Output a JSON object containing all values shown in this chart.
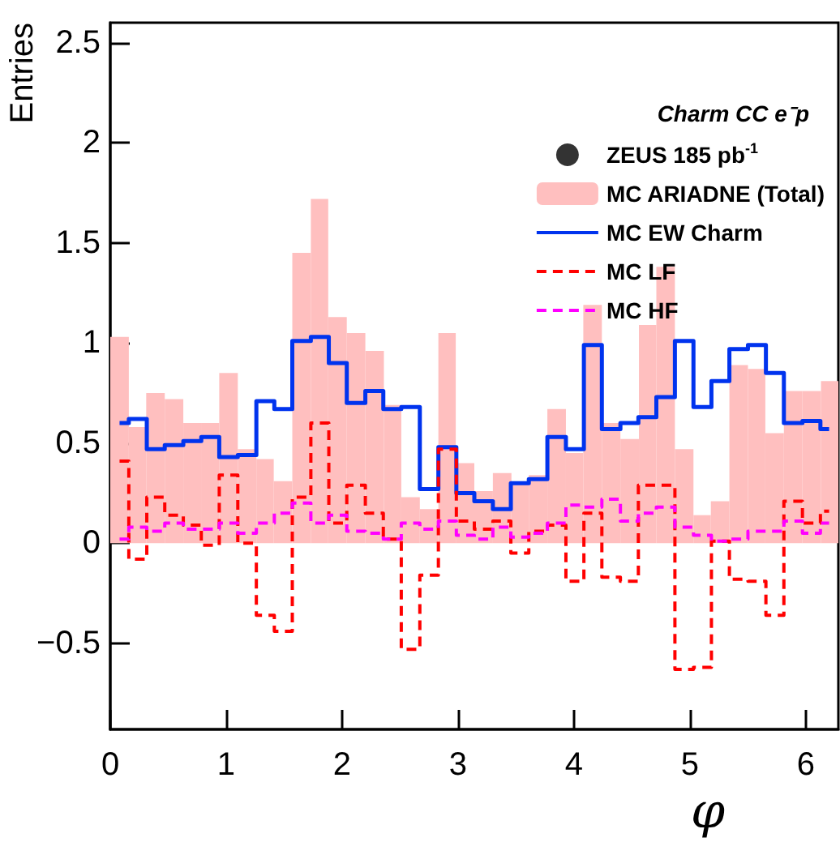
{
  "chart_data": {
    "type": "histogram",
    "xlabel": "φ",
    "ylabel": "Entries",
    "legend_title": "Charm CC e⁻p",
    "legend": "top right",
    "grid": false,
    "xlim": [
      0,
      6.28
    ],
    "xticks": [
      0,
      1,
      2,
      3,
      4,
      5,
      6
    ],
    "ylim": [
      -0.93,
      2.6
    ],
    "yticks": [
      -0.5,
      0,
      0.5,
      1,
      1.5,
      2,
      2.5
    ],
    "bins": [
      0,
      0.16,
      0.31,
      0.47,
      0.63,
      0.79,
      0.94,
      1.1,
      1.26,
      1.41,
      1.57,
      1.73,
      1.88,
      2.04,
      2.2,
      2.36,
      2.51,
      2.67,
      2.83,
      2.98,
      3.14,
      3.3,
      3.46,
      3.61,
      3.77,
      3.93,
      4.08,
      4.24,
      4.4,
      4.56,
      4.71,
      4.87,
      5.03,
      5.18,
      5.34,
      5.5,
      5.65,
      5.81,
      5.97,
      6.13,
      6.28
    ],
    "series": [
      {
        "name": "ZEUS 185 pb$^{-1}$",
        "type": "scatter",
        "marker": "circle",
        "color": "#000000",
        "values": [
          null,
          null,
          null,
          null,
          null,
          null,
          null,
          null,
          null,
          null,
          null,
          null,
          null,
          null,
          null,
          null,
          null,
          null,
          null,
          null,
          null,
          null,
          null,
          null,
          null,
          null,
          null,
          null,
          null,
          null,
          null,
          null,
          null,
          null,
          null,
          null,
          null,
          null,
          null,
          null
        ]
      },
      {
        "name": "MC ARIADNE (Total)",
        "color": "#ffbfbf",
        "values": [
          1.03,
          0.58,
          0.75,
          0.72,
          0.6,
          0.6,
          0.85,
          0.47,
          0.42,
          0.31,
          1.45,
          1.72,
          1.13,
          1.05,
          0.96,
          0.69,
          0.23,
          0.17,
          1.05,
          0.4,
          0.26,
          0.35,
          0.3,
          0.34,
          0.67,
          0.45,
          1.19,
          0.6,
          0.52,
          1.09,
          1.38,
          0.47,
          0.14,
          0.21,
          0.89,
          0.87,
          0.55,
          0.76,
          0.76,
          0.81
        ]
      },
      {
        "name": "MC EW Charm",
        "type": "step",
        "line_style": "solid",
        "color": "#0033ee",
        "x": [
          0.08,
          0.24,
          0.39,
          0.55,
          0.71,
          0.86,
          1.02,
          1.18,
          1.34,
          1.49,
          1.65,
          1.81,
          1.96,
          2.12,
          2.28,
          2.43,
          2.59,
          2.75,
          2.91,
          3.06,
          3.22,
          3.38,
          3.53,
          3.69,
          3.85,
          4.01,
          4.16,
          4.32,
          4.48,
          4.63,
          4.79,
          4.95,
          5.11,
          5.26,
          5.42,
          5.58,
          5.73,
          5.89,
          6.05,
          6.2
        ],
        "values": [
          0.6,
          0.62,
          0.47,
          0.49,
          0.51,
          0.53,
          0.43,
          0.44,
          0.71,
          0.67,
          1.01,
          1.03,
          0.9,
          0.7,
          0.76,
          0.67,
          0.68,
          0.27,
          0.48,
          0.25,
          0.21,
          0.17,
          0.3,
          0.32,
          0.53,
          0.47,
          0.99,
          0.57,
          0.6,
          0.63,
          0.73,
          1.01,
          0.68,
          0.81,
          0.97,
          0.99,
          0.85,
          0.6,
          0.61,
          0.57
        ]
      },
      {
        "name": "MC LF",
        "type": "step",
        "line_style": "dashed",
        "color": "#ff0000",
        "x": [
          0.08,
          0.24,
          0.39,
          0.55,
          0.71,
          0.86,
          1.02,
          1.18,
          1.34,
          1.49,
          1.65,
          1.81,
          1.96,
          2.12,
          2.28,
          2.43,
          2.59,
          2.75,
          2.91,
          3.06,
          3.22,
          3.38,
          3.53,
          3.69,
          3.85,
          4.01,
          4.16,
          4.32,
          4.48,
          4.63,
          4.79,
          4.95,
          5.11,
          5.26,
          5.42,
          5.58,
          5.73,
          5.89,
          6.05,
          6.2
        ],
        "values": [
          0.41,
          -0.08,
          0.23,
          0.14,
          0.09,
          -0.01,
          0.34,
          0.0,
          -0.36,
          -0.44,
          0.23,
          0.6,
          0.1,
          0.29,
          0.15,
          0.02,
          -0.53,
          -0.16,
          0.47,
          0.11,
          0.07,
          0.11,
          -0.05,
          0.06,
          0.09,
          -0.19,
          0.15,
          -0.17,
          -0.19,
          0.29,
          0.29,
          -0.63,
          -0.62,
          0.01,
          -0.18,
          -0.19,
          -0.36,
          0.21,
          0.1,
          0.16
        ]
      },
      {
        "name": "MC HF",
        "type": "step",
        "line_style": "dashed",
        "color": "#ff00ff",
        "x": [
          0.08,
          0.24,
          0.39,
          0.55,
          0.71,
          0.86,
          1.02,
          1.18,
          1.34,
          1.49,
          1.65,
          1.81,
          1.96,
          2.12,
          2.28,
          2.43,
          2.59,
          2.75,
          2.91,
          3.06,
          3.22,
          3.38,
          3.53,
          3.69,
          3.85,
          4.01,
          4.16,
          4.32,
          4.48,
          4.63,
          4.79,
          4.95,
          5.11,
          5.26,
          5.42,
          5.58,
          5.73,
          5.89,
          6.05,
          6.2
        ],
        "values": [
          0.02,
          0.08,
          0.06,
          0.1,
          0.07,
          0.07,
          0.1,
          0.05,
          0.1,
          0.15,
          0.2,
          0.1,
          0.14,
          0.06,
          0.05,
          0.02,
          0.1,
          0.07,
          0.11,
          0.04,
          0.02,
          0.08,
          0.03,
          0.05,
          0.1,
          0.19,
          0.18,
          0.22,
          0.11,
          0.15,
          0.18,
          0.08,
          0.04,
          0.01,
          0.02,
          0.06,
          0.06,
          0.11,
          0.05,
          0.1
        ]
      }
    ]
  }
}
